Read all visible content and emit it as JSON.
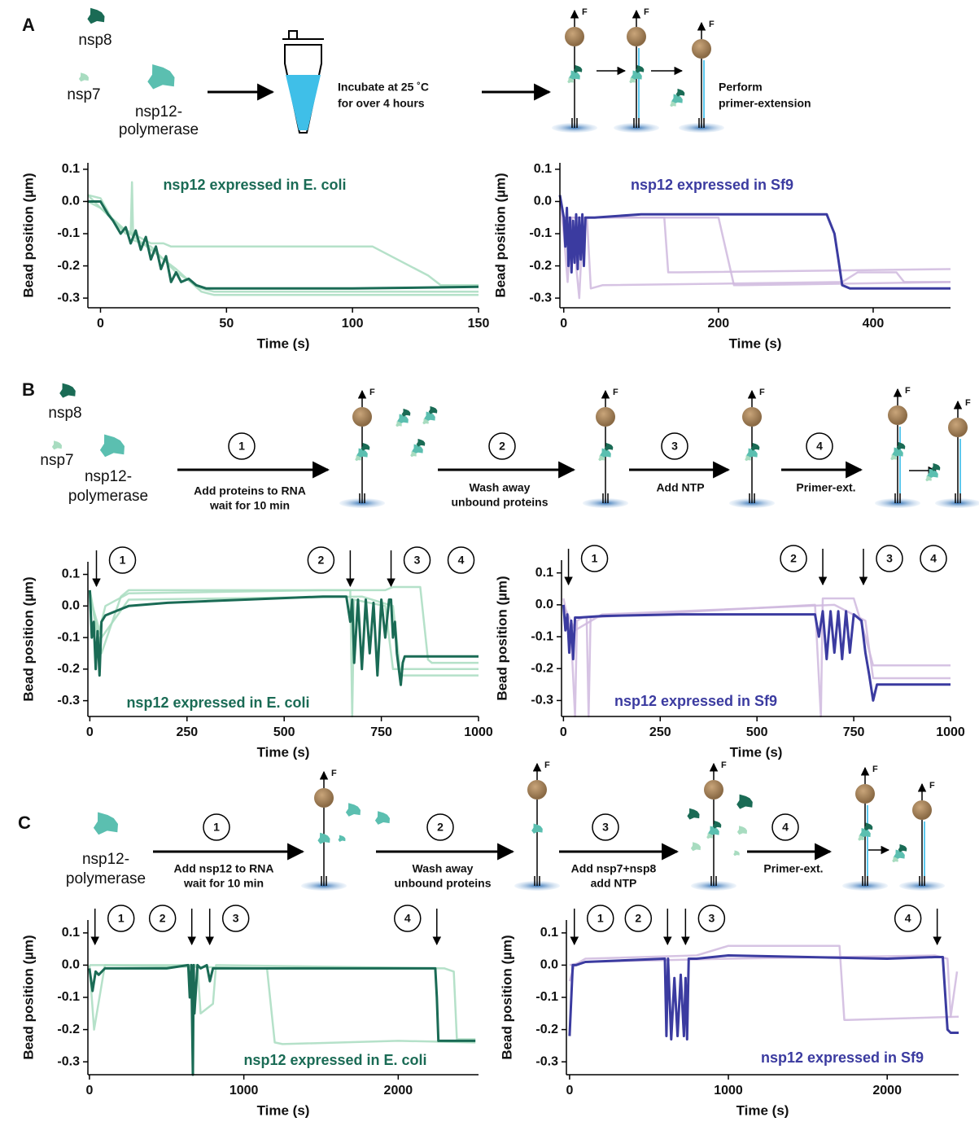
{
  "panel_a": {
    "label": "A",
    "nsp8": "nsp8",
    "nsp7": "nsp7",
    "nsp12": [
      "nsp12-",
      "polymerase"
    ],
    "incubate": [
      "Incubate at 25 ˚C",
      "for over 4 hours"
    ],
    "perform": [
      "Perform",
      "primer-extension"
    ],
    "force": "F"
  },
  "panel_b": {
    "label": "B",
    "nsp8": "nsp8",
    "nsp7": "nsp7",
    "nsp12": [
      "nsp12-",
      "polymerase"
    ],
    "force": "F",
    "steps": [
      {
        "num": "1",
        "text": [
          "Add proteins to RNA",
          "wait for 10 min"
        ]
      },
      {
        "num": "2",
        "text": [
          "Wash away",
          "unbound proteins"
        ]
      },
      {
        "num": "3",
        "text": [
          "Add NTP"
        ]
      },
      {
        "num": "4",
        "text": [
          "Primer-ext."
        ]
      }
    ]
  },
  "panel_c": {
    "label": "C",
    "nsp12": [
      "nsp12-",
      "polymerase"
    ],
    "force": "F",
    "steps": [
      {
        "num": "1",
        "text": [
          "Add nsp12 to RNA",
          "wait for 10 min"
        ]
      },
      {
        "num": "2",
        "text": [
          "Wash away",
          "unbound proteins"
        ]
      },
      {
        "num": "3",
        "text": [
          "Add nsp7+nsp8",
          "add NTP"
        ]
      },
      {
        "num": "4",
        "text": [
          "Primer-ext."
        ]
      }
    ]
  },
  "chart_data": [
    {
      "type": "line",
      "title": "nsp12 expressed in E. coli",
      "title_color": "#1a6b55",
      "xlabel": "Time (s)",
      "ylabel": "Bead position (µm)",
      "xlim": [
        -5,
        150
      ],
      "ylim": [
        -0.33,
        0.12
      ],
      "xticks": [
        0,
        50,
        100,
        150
      ],
      "yticks": [
        0.1,
        {
          "value": 0,
          "label": "0.0"
        },
        -0.1,
        -0.2,
        -0.3
      ],
      "series": [
        {
          "color": "#a8dcc0",
          "x": [
            -5,
            0,
            5,
            10,
            12,
            12.5,
            13,
            20,
            30,
            40,
            45,
            50,
            150
          ],
          "values": [
            0.02,
            0.01,
            -0.06,
            -0.1,
            -0.1,
            0.06,
            -0.12,
            -0.14,
            -0.22,
            -0.27,
            -0.28,
            -0.28,
            -0.28
          ]
        },
        {
          "color": "#a8dcc0",
          "x": [
            -5,
            0,
            8,
            20,
            25,
            28,
            100,
            108,
            130,
            135,
            150
          ],
          "values": [
            0.02,
            -0.02,
            -0.08,
            -0.13,
            -0.13,
            -0.14,
            -0.14,
            -0.14,
            -0.23,
            -0.26,
            -0.26
          ]
        },
        {
          "color": "#a8dcc0",
          "x": [
            -5,
            0,
            10,
            20,
            30,
            40,
            45,
            150
          ],
          "values": [
            0,
            -0.02,
            -0.09,
            -0.15,
            -0.21,
            -0.28,
            -0.29,
            -0.29
          ]
        },
        {
          "color": "#1a6b55",
          "x": [
            -5,
            0,
            3,
            5,
            8,
            10,
            12,
            14,
            16,
            18,
            20,
            22,
            24,
            26,
            28,
            30,
            32,
            35,
            38,
            42,
            50,
            100,
            150
          ],
          "values": [
            0,
            0,
            -0.04,
            -0.06,
            -0.1,
            -0.08,
            -0.13,
            -0.09,
            -0.15,
            -0.11,
            -0.18,
            -0.14,
            -0.21,
            -0.17,
            -0.25,
            -0.22,
            -0.25,
            -0.24,
            -0.26,
            -0.27,
            -0.27,
            -0.27,
            -0.265
          ]
        }
      ]
    },
    {
      "type": "line",
      "title": "nsp12 expressed in Sf9",
      "title_color": "#3b3ba0",
      "xlabel": "Time (s)",
      "ylabel": "Bead position (µm)",
      "xlim": [
        -5,
        500
      ],
      "ylim": [
        -0.33,
        0.12
      ],
      "xticks": [
        0,
        200,
        400
      ],
      "yticks": [
        0.1,
        {
          "value": 0,
          "label": "0.0"
        },
        -0.1,
        -0.2,
        -0.3
      ],
      "series": [
        {
          "color": "#cfb8de",
          "x": [
            -5,
            0,
            5,
            10,
            20,
            25,
            30,
            35,
            40,
            130,
            135,
            150,
            500
          ],
          "values": [
            0,
            -0.1,
            -0.25,
            -0.05,
            -0.3,
            -0.05,
            -0.05,
            -0.05,
            -0.05,
            -0.05,
            -0.22,
            -0.22,
            -0.21
          ]
        },
        {
          "color": "#cfb8de",
          "x": [
            -5,
            0,
            30,
            40,
            50,
            200,
            220,
            230,
            500
          ],
          "values": [
            0,
            -0.05,
            -0.05,
            -0.05,
            -0.05,
            -0.05,
            -0.26,
            -0.26,
            -0.25
          ]
        },
        {
          "color": "#cfb8de",
          "x": [
            -5,
            0,
            30,
            35,
            50,
            360,
            380,
            430,
            440,
            500
          ],
          "values": [
            0,
            -0.05,
            -0.05,
            -0.27,
            -0.26,
            -0.25,
            -0.22,
            -0.22,
            -0.25,
            -0.25
          ]
        },
        {
          "color": "#3b3ba0",
          "x": [
            -5,
            0,
            2,
            4,
            6,
            8,
            10,
            12,
            14,
            16,
            18,
            20,
            22,
            24,
            26,
            28,
            30,
            40,
            100,
            200,
            300,
            340,
            350,
            355,
            360,
            370,
            400,
            500
          ],
          "values": [
            0.02,
            -0.05,
            -0.14,
            -0.02,
            -0.2,
            -0.05,
            -0.22,
            -0.06,
            -0.19,
            -0.04,
            -0.21,
            -0.05,
            -0.18,
            -0.04,
            -0.2,
            -0.05,
            -0.05,
            -0.05,
            -0.04,
            -0.04,
            -0.04,
            -0.04,
            -0.1,
            -0.18,
            -0.26,
            -0.27,
            -0.27,
            -0.27
          ]
        }
      ]
    },
    {
      "type": "line",
      "title": "nsp12 expressed in E. coli",
      "title_color": "#1a6b55",
      "xlabel": "Time (s)",
      "ylabel": "Bead position (µm)",
      "xlim": [
        -5,
        1000
      ],
      "ylim": [
        -0.35,
        0.14
      ],
      "xticks": [
        0,
        250,
        500,
        750,
        1000
      ],
      "yticks": [
        0.1,
        {
          "value": 0,
          "label": "0.0"
        },
        -0.1,
        -0.2,
        -0.3
      ],
      "annotations": [
        {
          "label": "1",
          "x": 17
        },
        {
          "label": "2",
          "x": 670
        },
        {
          "label": "3",
          "x": 775
        },
        {
          "label": "4"
        }
      ],
      "series": [
        {
          "color": "#a8dcc0",
          "x": [
            0,
            20,
            40,
            100,
            600,
            670,
            675,
            680,
            760,
            780,
            800,
            1000
          ],
          "values": [
            0.05,
            -0.1,
            0,
            0.04,
            0.05,
            0.05,
            -0.35,
            0.02,
            0,
            -0.2,
            -0.2,
            -0.2
          ]
        },
        {
          "color": "#a8dcc0",
          "x": [
            0,
            30,
            80,
            100,
            650,
            700,
            760,
            780,
            850,
            870,
            880,
            1000
          ],
          "values": [
            0.05,
            -0.15,
            0.03,
            0.05,
            0.05,
            0.05,
            0.05,
            0.06,
            0.06,
            -0.17,
            -0.18,
            -0.18
          ]
        },
        {
          "color": "#a8dcc0",
          "x": [
            0,
            30,
            100,
            700,
            780,
            800,
            820,
            1000
          ],
          "values": [
            0.03,
            -0.1,
            0.02,
            0.03,
            0,
            -0.22,
            -0.22,
            -0.22
          ]
        },
        {
          "color": "#1a6b55",
          "x": [
            0,
            5,
            10,
            15,
            20,
            25,
            30,
            40,
            60,
            100,
            200,
            400,
            600,
            660,
            670,
            675,
            680,
            690,
            700,
            710,
            720,
            730,
            740,
            750,
            760,
            770,
            775,
            780,
            785,
            790,
            795,
            800,
            805,
            810,
            850,
            1000
          ],
          "values": [
            0.05,
            -0.1,
            -0.05,
            -0.2,
            -0.08,
            -0.22,
            -0.05,
            -0.03,
            -0.02,
            0,
            0.01,
            0.02,
            0.03,
            0.03,
            -0.05,
            0.02,
            -0.18,
            0.02,
            -0.2,
            0.02,
            -0.15,
            0.01,
            -0.22,
            0.02,
            -0.1,
            0.02,
            0.02,
            -0.1,
            -0.05,
            -0.15,
            -0.2,
            -0.25,
            -0.18,
            -0.16,
            -0.16,
            -0.16
          ]
        }
      ]
    },
    {
      "type": "line",
      "title": "nsp12 expressed in Sf9",
      "title_color": "#3b3ba0",
      "xlabel": "Time (s)",
      "ylabel": "Bead position (µm)",
      "xlim": [
        -5,
        1000
      ],
      "ylim": [
        -0.35,
        0.14
      ],
      "xticks": [
        0,
        250,
        500,
        750,
        1000
      ],
      "yticks": [
        0.1,
        {
          "value": 0,
          "label": "0.0"
        },
        -0.1,
        -0.2,
        -0.3
      ],
      "annotations": [
        {
          "label": "1",
          "x": 13
        },
        {
          "label": "2",
          "x": 670
        },
        {
          "label": "3",
          "x": 775
        },
        {
          "label": "4"
        }
      ],
      "series": [
        {
          "color": "#cfb8de",
          "x": [
            0,
            20,
            30,
            35,
            50,
            60,
            65,
            70,
            200,
            650,
            665,
            670,
            700,
            750,
            780,
            800,
            1000
          ],
          "values": [
            0.02,
            -0.1,
            -0.35,
            -0.05,
            -0.04,
            -0.04,
            -0.35,
            -0.04,
            -0.03,
            0,
            -0.35,
            0.02,
            0.02,
            0.02,
            -0.1,
            -0.19,
            -0.19
          ]
        },
        {
          "color": "#cfb8de",
          "x": [
            0,
            30,
            100,
            700,
            780,
            800,
            1000
          ],
          "values": [
            0,
            -0.08,
            -0.03,
            0,
            -0.05,
            -0.23,
            -0.23
          ]
        },
        {
          "color": "#3b3ba0",
          "x": [
            0,
            5,
            10,
            15,
            20,
            25,
            30,
            40,
            100,
            300,
            600,
            650,
            660,
            670,
            680,
            690,
            700,
            710,
            720,
            730,
            740,
            750,
            760,
            770,
            780,
            790,
            800,
            810,
            820,
            850,
            1000
          ],
          "values": [
            0,
            -0.08,
            -0.03,
            -0.15,
            -0.05,
            -0.17,
            -0.04,
            -0.04,
            -0.035,
            -0.03,
            -0.03,
            -0.03,
            -0.1,
            -0.02,
            -0.17,
            -0.02,
            -0.15,
            -0.02,
            -0.17,
            -0.02,
            -0.15,
            -0.03,
            -0.04,
            -0.05,
            -0.15,
            -0.22,
            -0.3,
            -0.25,
            -0.25,
            -0.25,
            -0.25
          ]
        }
      ]
    },
    {
      "type": "line",
      "title": "nsp12 expressed in E. coli",
      "title_color": "#1a6b55",
      "xlabel": "Time (s)",
      "ylabel": "Bead position (µm)",
      "xlim": [
        -10,
        2520
      ],
      "ylim": [
        -0.34,
        0.14
      ],
      "xticks": [
        0,
        1000,
        2000
      ],
      "yticks": [
        0.1,
        {
          "value": 0,
          "label": "0.0"
        },
        -0.1,
        -0.2,
        -0.3
      ],
      "annotations": [
        {
          "label": "1",
          "x": 36
        },
        {
          "label": "2",
          "x": 663
        },
        {
          "label": "3",
          "x": 779
        },
        {
          "label": "4",
          "x": 2250
        }
      ],
      "series": [
        {
          "color": "#a8dcc0",
          "x": [
            0,
            30,
            100,
            1150,
            1200,
            1250,
            2000,
            2500
          ],
          "values": [
            0,
            -0.2,
            0,
            -0.01,
            -0.24,
            -0.245,
            -0.235,
            -0.24
          ]
        },
        {
          "color": "#a8dcc0",
          "x": [
            0,
            100,
            700,
            720,
            800,
            820,
            2300,
            2360,
            2380,
            2500
          ],
          "values": [
            0,
            0,
            0,
            -0.15,
            -0.12,
            0,
            -0.01,
            -0.02,
            -0.23,
            -0.23
          ]
        },
        {
          "color": "#1a6b55",
          "x": [
            0,
            20,
            40,
            60,
            100,
            500,
            640,
            650,
            660,
            670,
            675,
            680,
            700,
            720,
            760,
            780,
            800,
            1000,
            2000,
            2240,
            2250,
            2260,
            2500
          ],
          "values": [
            -0.01,
            -0.08,
            -0.02,
            -0.03,
            -0.01,
            -0.01,
            0,
            -0.1,
            0,
            -0.34,
            0,
            -0.15,
            0,
            -0.01,
            0,
            -0.05,
            -0.01,
            -0.01,
            -0.01,
            -0.01,
            -0.1,
            -0.235,
            -0.235
          ]
        }
      ]
    },
    {
      "type": "line",
      "title": "nsp12 expressed in Sf9",
      "title_color": "#3b3ba0",
      "xlabel": "Time (s)",
      "ylabel": "Bead position (µm)",
      "xlim": [
        -20,
        2450
      ],
      "ylim": [
        -0.34,
        0.14
      ],
      "xticks": [
        0,
        1000,
        2000
      ],
      "yticks": [
        0.1,
        {
          "value": 0,
          "label": "0.0"
        },
        -0.1,
        -0.2,
        -0.3
      ],
      "annotations": [
        {
          "label": "1",
          "x": 30
        },
        {
          "label": "2",
          "x": 617
        },
        {
          "label": "3",
          "x": 730
        },
        {
          "label": "4",
          "x": 2315
        }
      ],
      "series": [
        {
          "color": "#cfb8de",
          "x": [
            0,
            30,
            100,
            800,
            1000,
            1500,
            1700,
            1730,
            1750,
            2450
          ],
          "values": [
            -0.05,
            0,
            0.02,
            0.03,
            0.06,
            0.06,
            0.06,
            -0.17,
            -0.17,
            -0.16
          ]
        },
        {
          "color": "#cfb8de",
          "x": [
            0,
            100,
            1000,
            2300,
            2380,
            2400,
            2440
          ],
          "values": [
            0,
            0.01,
            0.02,
            0.03,
            0.02,
            -0.16,
            -0.02
          ]
        },
        {
          "color": "#3b3ba0",
          "x": [
            0,
            20,
            40,
            100,
            600,
            610,
            620,
            640,
            660,
            680,
            700,
            720,
            730,
            740,
            750,
            760,
            800,
            1000,
            2000,
            2300,
            2350,
            2380,
            2400,
            2450
          ],
          "values": [
            -0.22,
            0,
            0,
            0.01,
            0.02,
            -0.22,
            0.02,
            -0.23,
            -0.04,
            -0.22,
            -0.03,
            -0.22,
            -0.04,
            -0.23,
            0.02,
            0.02,
            0.02,
            0.03,
            0.02,
            0.025,
            0.025,
            -0.2,
            -0.21,
            -0.21
          ]
        }
      ]
    }
  ]
}
